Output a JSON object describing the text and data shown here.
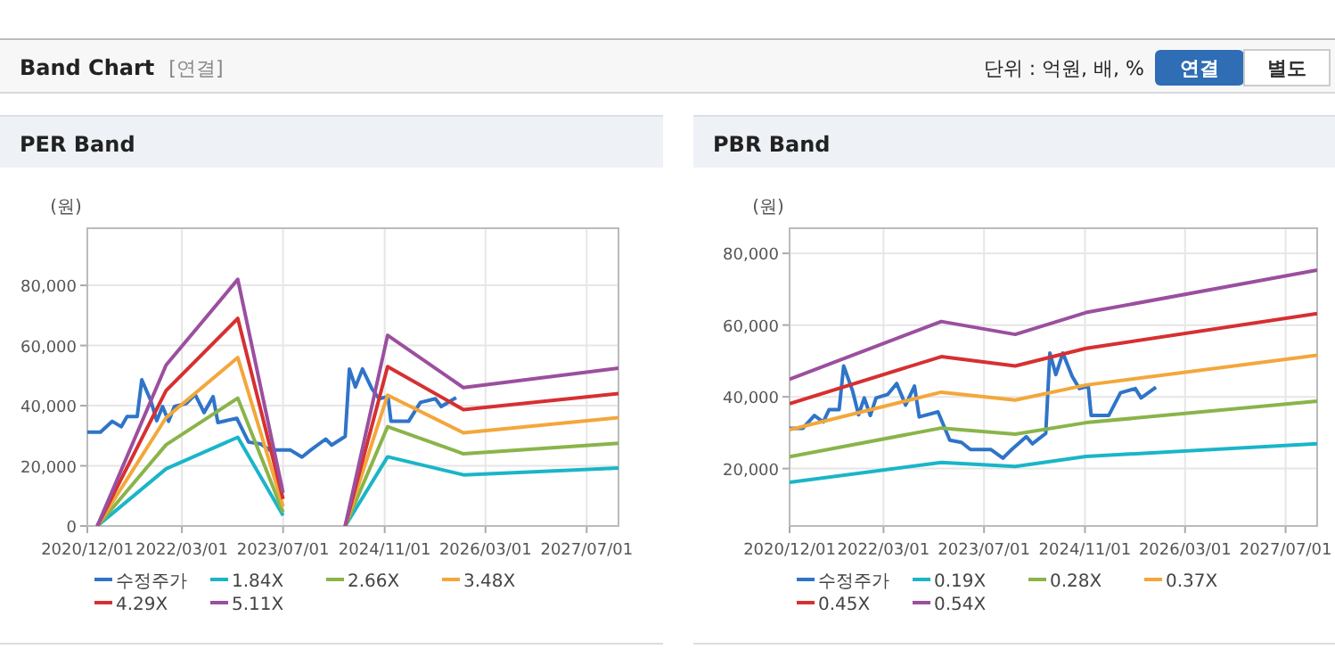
{
  "chart_data": [
    {
      "type": "other",
      "title": "Band Chart",
      "subtitle": "[연결]",
      "annotations": [
        "단위 : 억원, 배, %",
        "연결",
        "별도"
      ]
    },
    {
      "type": "line",
      "title": "PER Band",
      "ylabel": "(원)",
      "xlim": [
        "2020-12-01",
        "2027-12-01"
      ],
      "ylim": [
        0,
        99000
      ],
      "xticks": [
        {
          "value": "2020-12-01",
          "label": "2020/12/01"
        },
        {
          "value": "2022-03-01",
          "label": "2022/03/01"
        },
        {
          "value": "2023-07-01",
          "label": "2023/07/01"
        },
        {
          "value": "2024-11-01",
          "label": "2024/11/01"
        },
        {
          "value": "2026-03-01",
          "label": "2026/03/01"
        },
        {
          "value": "2027-07-01",
          "label": "2027/07/01"
        }
      ],
      "yticks": [
        0,
        {
          "value": 20000,
          "label": "20,000"
        },
        {
          "value": 40000,
          "label": "40,000"
        },
        {
          "value": 60000,
          "label": "60,000"
        },
        {
          "value": 80000,
          "label": "80,000"
        }
      ],
      "grid": true,
      "legend": "bottom",
      "series": [
        {
          "name": "수정주가",
          "color": "#2f74c8",
          "x": [
            "2020-12-01",
            "2021-02-02",
            "2021-03-31",
            "2021-05-13",
            "2021-06-10",
            "2021-07-29",
            "2021-08-20",
            "2021-10-02",
            "2021-10-31",
            "2021-11-28",
            "2021-12-27",
            "2022-01-24",
            "2022-03-22",
            "2022-05-04",
            "2022-06-16",
            "2022-07-29",
            "2022-08-21",
            "2022-11-20",
            "2023-01-16",
            "2023-03-14",
            "2023-04-26",
            "2023-08-04",
            "2023-09-30",
            "2023-11-12",
            "2024-01-22",
            "2024-02-20",
            "2024-04-25",
            "2024-05-15",
            "2024-06-13",
            "2024-07-17",
            "2024-08-31",
            "2024-10-05",
            "2024-11-17",
            "2024-12-01",
            "2025-02-24",
            "2025-04-22",
            "2025-07-03",
            "2025-07-31",
            "2025-10-11"
          ],
          "values": [
            31200,
            31200,
            34800,
            33000,
            36400,
            36400,
            48600,
            41700,
            35000,
            39700,
            34800,
            39700,
            40700,
            43700,
            37700,
            43000,
            34400,
            35800,
            27900,
            27300,
            25300,
            25300,
            22900,
            25300,
            28900,
            26900,
            29800,
            52200,
            46200,
            52200,
            45700,
            42300,
            43000,
            34800,
            34800,
            41100,
            42300,
            39700,
            42700
          ]
        },
        {
          "name": "1.84X",
          "color": "#1ab5c8",
          "x": [
            "2021-01-18",
            "2021-12-15",
            "2022-11-25",
            "2023-07-01",
            "2024-01-01",
            "2024-04-25",
            "2024-11-15",
            "2025-11-15",
            "2027-12-01"
          ],
          "values": [
            0,
            19000,
            29500,
            3500,
            null,
            0,
            23000,
            17000,
            19300
          ]
        },
        {
          "name": "2.66X",
          "color": "#8ab44a",
          "x": [
            "2021-01-18",
            "2021-12-15",
            "2022-11-25",
            "2023-07-01",
            "2024-01-01",
            "2024-04-25",
            "2024-11-15",
            "2025-11-15",
            "2027-12-01"
          ],
          "values": [
            0,
            27000,
            42500,
            4500,
            null,
            0,
            33000,
            24000,
            27500
          ]
        },
        {
          "name": "3.48X",
          "color": "#f3a73b",
          "x": [
            "2021-01-18",
            "2021-12-15",
            "2022-11-25",
            "2023-07-01",
            "2024-01-01",
            "2024-04-25",
            "2024-11-15",
            "2025-11-15",
            "2027-12-01"
          ],
          "values": [
            0,
            36000,
            56000,
            6500,
            null,
            0,
            43500,
            31000,
            36000
          ]
        },
        {
          "name": "4.29X",
          "color": "#d63031",
          "x": [
            "2021-01-18",
            "2021-12-15",
            "2022-11-25",
            "2023-07-01",
            "2024-01-01",
            "2024-04-25",
            "2024-11-15",
            "2025-11-15",
            "2027-12-01"
          ],
          "values": [
            0,
            45000,
            69000,
            9000,
            null,
            0,
            53000,
            38700,
            44000
          ]
        },
        {
          "name": "5.11X",
          "color": "#9b4f9f",
          "x": [
            "2021-01-18",
            "2021-12-15",
            "2022-11-25",
            "2023-07-01",
            "2024-01-01",
            "2024-04-25",
            "2024-11-15",
            "2025-11-15",
            "2027-12-01"
          ],
          "values": [
            0,
            53500,
            82000,
            11000,
            null,
            0,
            63400,
            46000,
            52500
          ]
        }
      ]
    },
    {
      "type": "line",
      "title": "PBR Band",
      "ylabel": "(원)",
      "xlim": [
        "2020-12-01",
        "2027-12-01"
      ],
      "ylim": [
        4000,
        87000
      ],
      "xticks": [
        {
          "value": "2020-12-01",
          "label": "2020/12/01"
        },
        {
          "value": "2022-03-01",
          "label": "2022/03/01"
        },
        {
          "value": "2023-07-01",
          "label": "2023/07/01"
        },
        {
          "value": "2024-11-01",
          "label": "2024/11/01"
        },
        {
          "value": "2026-03-01",
          "label": "2026/03/01"
        },
        {
          "value": "2027-07-01",
          "label": "2027/07/01"
        }
      ],
      "yticks": [
        {
          "value": 20000,
          "label": "20,000"
        },
        {
          "value": 40000,
          "label": "40,000"
        },
        {
          "value": 60000,
          "label": "60,000"
        },
        {
          "value": 80000,
          "label": "80,000"
        }
      ],
      "grid": true,
      "legend": "bottom",
      "series": [
        {
          "name": "수정주가",
          "color": "#2f74c8",
          "x": [
            "2020-12-01",
            "2021-02-02",
            "2021-03-31",
            "2021-05-13",
            "2021-06-10",
            "2021-07-29",
            "2021-08-20",
            "2021-10-02",
            "2021-10-31",
            "2021-11-28",
            "2021-12-27",
            "2022-01-24",
            "2022-03-22",
            "2022-05-04",
            "2022-06-16",
            "2022-07-29",
            "2022-08-21",
            "2022-11-20",
            "2023-01-16",
            "2023-03-14",
            "2023-04-26",
            "2023-08-04",
            "2023-09-30",
            "2023-11-12",
            "2024-01-22",
            "2024-02-20",
            "2024-04-25",
            "2024-05-15",
            "2024-06-13",
            "2024-07-17",
            "2024-08-31",
            "2024-10-05",
            "2024-11-17",
            "2024-12-01",
            "2025-02-24",
            "2025-04-22",
            "2025-07-03",
            "2025-07-31",
            "2025-10-11"
          ],
          "values": [
            31200,
            31200,
            34800,
            33000,
            36400,
            36400,
            48600,
            41700,
            35000,
            39700,
            34800,
            39700,
            40700,
            43700,
            37700,
            43000,
            34400,
            35800,
            27900,
            27300,
            25300,
            25300,
            22900,
            25300,
            28900,
            26900,
            29800,
            52200,
            46200,
            52200,
            45700,
            42300,
            43000,
            34800,
            34800,
            41100,
            42300,
            39700,
            42700
          ]
        },
        {
          "name": "0.19X",
          "color": "#1ab5c8",
          "x": [
            "2020-12-01",
            "2022-12-06",
            "2023-11-29",
            "2024-11-06",
            "2027-12-01"
          ],
          "values": [
            16200,
            21700,
            20600,
            23400,
            26900
          ]
        },
        {
          "name": "0.28X",
          "color": "#8ab44a",
          "x": [
            "2020-12-01",
            "2022-12-06",
            "2023-11-29",
            "2024-11-06",
            "2027-12-01"
          ],
          "values": [
            23300,
            31300,
            29600,
            32800,
            38800
          ]
        },
        {
          "name": "0.37X",
          "color": "#f3a73b",
          "x": [
            "2020-12-01",
            "2022-12-06",
            "2023-11-29",
            "2024-11-06",
            "2027-12-01"
          ],
          "values": [
            30800,
            41300,
            39100,
            43300,
            51600
          ]
        },
        {
          "name": "0.45X",
          "color": "#d63031",
          "x": [
            "2020-12-01",
            "2022-12-06",
            "2023-11-29",
            "2024-11-06",
            "2027-12-01"
          ],
          "values": [
            38100,
            51200,
            48600,
            53500,
            63200
          ]
        },
        {
          "name": "0.54X",
          "color": "#9b4f9f",
          "x": [
            "2020-12-01",
            "2022-12-06",
            "2023-11-29",
            "2024-11-06",
            "2027-12-01"
          ],
          "values": [
            44900,
            61000,
            57400,
            63500,
            75300
          ]
        }
      ]
    }
  ]
}
